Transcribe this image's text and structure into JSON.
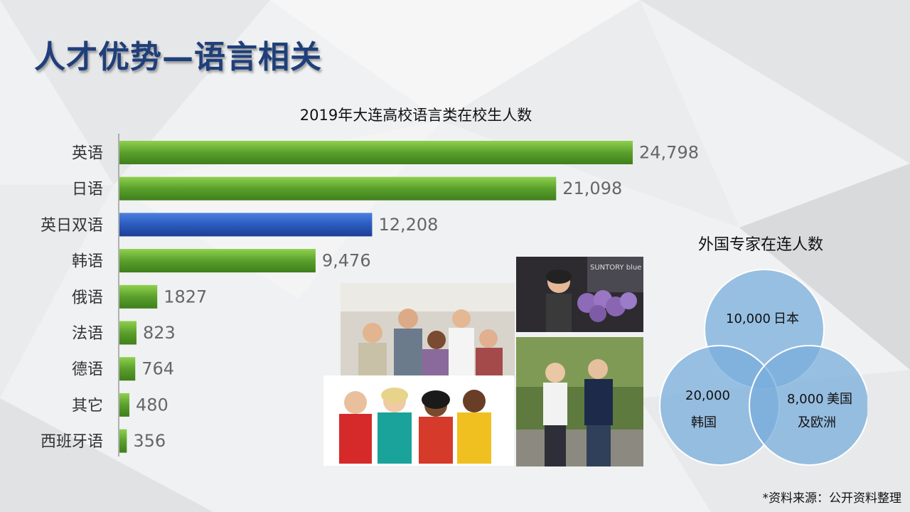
{
  "title": "人才优势—语言相关",
  "chart_data": {
    "type": "bar",
    "orientation": "horizontal",
    "title": "2019年大连高校语言类在校生人数",
    "categories": [
      "英语",
      "日语",
      "英日双语",
      "韩语",
      "俄语",
      "法语",
      "德语",
      "其它",
      "西班牙语"
    ],
    "values": [
      24798,
      21098,
      12208,
      9476,
      1827,
      823,
      764,
      480,
      356
    ],
    "value_labels": [
      "24,798",
      "21,098",
      "12,208",
      "9,476",
      "1827",
      "823",
      "764",
      "480",
      "356"
    ],
    "colors": [
      "#5aa02c",
      "#5aa02c",
      "#2a5bbd",
      "#5aa02c",
      "#5aa02c",
      "#5aa02c",
      "#5aa02c",
      "#5aa02c",
      "#5aa02c"
    ],
    "xlim": [
      0,
      24798
    ],
    "grid": false
  },
  "venn": {
    "title": "外国专家在连人数",
    "circles": [
      {
        "value": "10,000",
        "name": "日本"
      },
      {
        "value": "20,000",
        "name": "韩国"
      },
      {
        "value": "8,000",
        "name": "美国",
        "name2": "及欧洲"
      }
    ],
    "color": "#7aaddc"
  },
  "photos": [
    {
      "name": "flower-photo",
      "caption": "SUNTORY blue APPLAUSE"
    },
    {
      "name": "cheering-group-photo"
    },
    {
      "name": "walking-students-photo"
    },
    {
      "name": "thumbs-up-photo"
    }
  ],
  "source": "*资料来源：公开资料整理"
}
